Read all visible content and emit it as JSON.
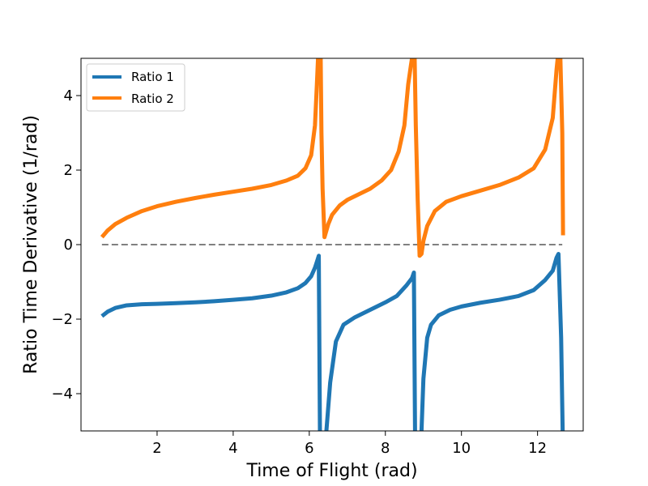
{
  "chart_data": {
    "type": "line",
    "title": "",
    "xlabel": "Time of Flight (rad)",
    "ylabel": "Ratio Time Derivative (1/rad)",
    "xlim": [
      0.0,
      13.2
    ],
    "ylim": [
      -5,
      5
    ],
    "x_ticks": [
      2,
      4,
      6,
      8,
      10,
      12
    ],
    "x_tick_labels": [
      "2",
      "4",
      "6",
      "8",
      "10",
      "12"
    ],
    "y_ticks": [
      -4,
      -2,
      0,
      2,
      4
    ],
    "y_tick_labels": [
      "−4",
      "−2",
      "0",
      "2",
      "4"
    ],
    "grid": false,
    "legend": {
      "placement": "top-left",
      "entries": [
        "Ratio 1",
        "Ratio 2"
      ]
    },
    "reference_line": {
      "y": 0,
      "x_range": [
        0.55,
        12.65
      ],
      "style": "dashed",
      "color": "#808080"
    },
    "series": [
      {
        "name": "Ratio 1",
        "color": "#1f77b4",
        "x": [
          0.55,
          0.7,
          0.9,
          1.2,
          1.6,
          2.0,
          2.5,
          3.0,
          3.5,
          4.0,
          4.5,
          5.0,
          5.4,
          5.7,
          5.9,
          6.05,
          6.15,
          6.22,
          6.25,
          6.28,
          null,
          6.45,
          6.55,
          6.7,
          6.9,
          7.2,
          7.6,
          8.0,
          8.3,
          8.55,
          8.7,
          8.75,
          8.78,
          null,
          8.95,
          9.0,
          9.1,
          9.2,
          9.4,
          9.7,
          10.0,
          10.5,
          11.0,
          11.5,
          11.9,
          12.2,
          12.4,
          12.5,
          12.55,
          12.62,
          12.66
        ],
        "y": [
          -1.92,
          -1.8,
          -1.7,
          -1.63,
          -1.6,
          -1.59,
          -1.57,
          -1.55,
          -1.52,
          -1.48,
          -1.44,
          -1.37,
          -1.28,
          -1.17,
          -1.03,
          -0.85,
          -0.62,
          -0.4,
          -0.3,
          -5.0,
          null,
          -5.0,
          -3.7,
          -2.6,
          -2.15,
          -1.95,
          -1.75,
          -1.55,
          -1.38,
          -1.1,
          -0.9,
          -0.75,
          -5.0,
          null,
          -5.0,
          -3.6,
          -2.5,
          -2.15,
          -1.9,
          -1.75,
          -1.66,
          -1.56,
          -1.48,
          -1.38,
          -1.22,
          -0.95,
          -0.7,
          -0.35,
          -0.25,
          -2.5,
          -5.0
        ]
      },
      {
        "name": "Ratio 2",
        "color": "#ff7f0e",
        "x": [
          0.55,
          0.7,
          0.9,
          1.2,
          1.6,
          2.0,
          2.5,
          3.0,
          3.5,
          4.0,
          4.5,
          5.0,
          5.4,
          5.7,
          5.9,
          6.05,
          6.15,
          6.2,
          6.23,
          null,
          6.3,
          6.32,
          6.35,
          6.4,
          6.5,
          6.6,
          6.8,
          7.0,
          7.3,
          7.6,
          7.9,
          8.15,
          8.35,
          8.5,
          8.6,
          8.67,
          8.7,
          8.72,
          null,
          8.77,
          8.8,
          8.85,
          8.9,
          8.95,
          9.0,
          9.1,
          9.3,
          9.6,
          10.0,
          10.5,
          11.0,
          11.5,
          11.9,
          12.2,
          12.4,
          12.5,
          12.53,
          null,
          12.6,
          12.65,
          12.67
        ],
        "y": [
          0.2,
          0.38,
          0.55,
          0.72,
          0.9,
          1.03,
          1.15,
          1.25,
          1.34,
          1.42,
          1.5,
          1.6,
          1.72,
          1.85,
          2.05,
          2.4,
          3.2,
          4.3,
          5.0,
          null,
          5.0,
          3.0,
          1.5,
          0.2,
          0.55,
          0.8,
          1.05,
          1.2,
          1.35,
          1.5,
          1.72,
          2.0,
          2.5,
          3.2,
          4.3,
          4.8,
          5.0,
          5.0,
          null,
          5.0,
          3.2,
          1.2,
          -0.3,
          -0.25,
          0.1,
          0.5,
          0.9,
          1.15,
          1.3,
          1.45,
          1.6,
          1.8,
          2.05,
          2.55,
          3.4,
          4.7,
          5.0,
          null,
          5.0,
          3.0,
          0.25
        ]
      }
    ]
  }
}
